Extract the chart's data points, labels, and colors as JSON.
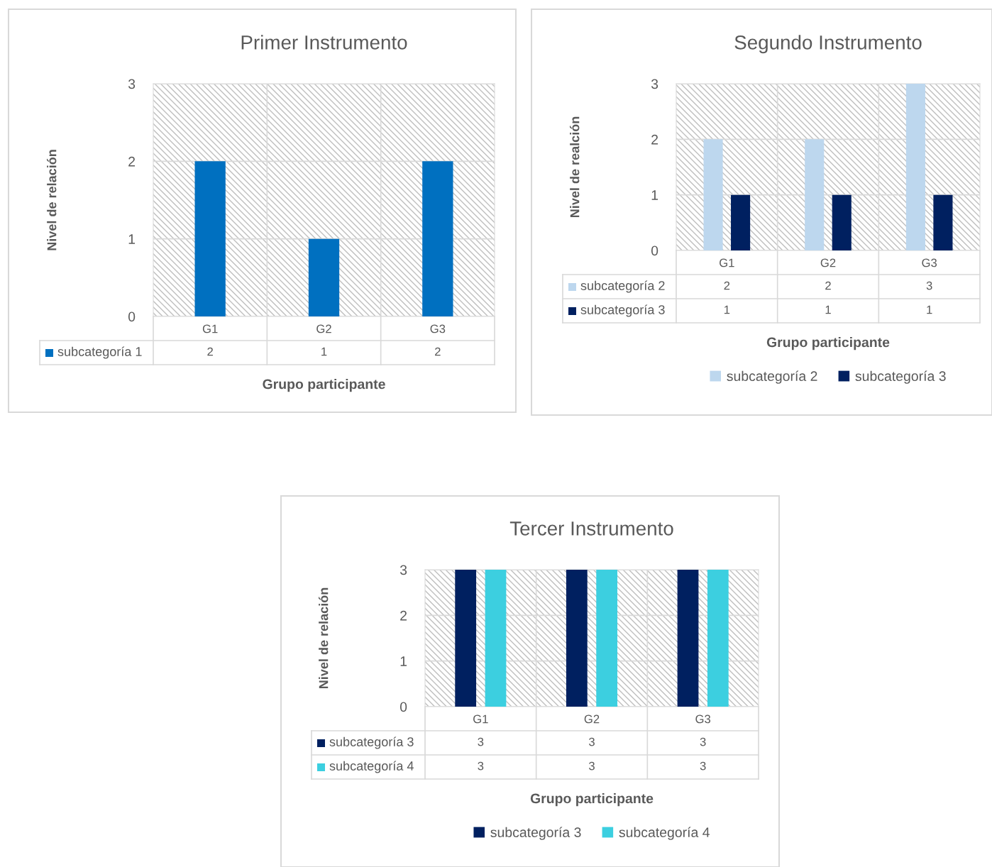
{
  "chart_data": [
    {
      "type": "bar",
      "title": "Primer Instrumento",
      "xlabel": "Grupo participante",
      "ylabel": "Nivel de relación",
      "categories": [
        "G1",
        "G2",
        "G3"
      ],
      "series": [
        {
          "name": "subcategoría 1",
          "color": "#0070c0",
          "values": [
            2,
            1,
            2
          ]
        }
      ],
      "ylim": [
        0,
        3
      ],
      "yticks": [
        0,
        1,
        2,
        3
      ],
      "grid": "y",
      "data_labels": true,
      "legend": "bottom left"
    },
    {
      "type": "bar",
      "title": "Segundo Instrumento",
      "xlabel": "Grupo participante",
      "ylabel": "Nivel de realción",
      "categories": [
        "G1",
        "G2",
        "G3"
      ],
      "series": [
        {
          "name": "subcategoría 2",
          "color": "#bdd7ee",
          "values": [
            2,
            2,
            3
          ]
        },
        {
          "name": "subcategoría 3",
          "color": "#002060",
          "values": [
            1,
            1,
            1
          ]
        }
      ],
      "ylim": [
        0,
        3
      ],
      "yticks": [
        0,
        1,
        2,
        3
      ],
      "grid": "y",
      "data_labels": true,
      "legend": "bottom"
    },
    {
      "type": "bar",
      "title": "Tercer Instrumento",
      "xlabel": "Grupo participante",
      "ylabel": "Nivel de relación",
      "categories": [
        "G1",
        "G2",
        "G3"
      ],
      "series": [
        {
          "name": "subcategoría 3",
          "color": "#002060",
          "values": [
            3,
            3,
            3
          ]
        },
        {
          "name": "subcategoría 4",
          "color": "#3ccfe0",
          "values": [
            3,
            3,
            3
          ]
        }
      ],
      "ylim": [
        0,
        3
      ],
      "yticks": [
        0,
        1,
        2,
        3
      ],
      "grid": "y",
      "data_labels": true,
      "legend": "bottom"
    }
  ]
}
